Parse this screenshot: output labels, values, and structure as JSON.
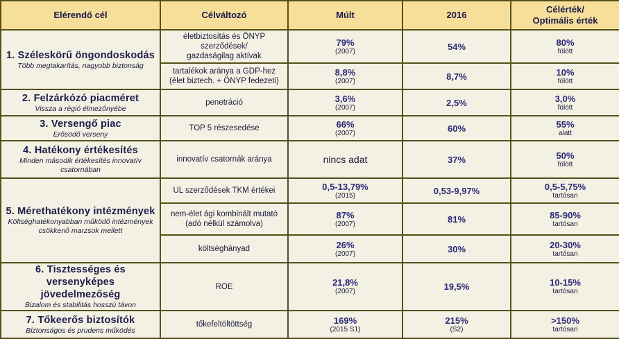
{
  "headers": {
    "goal": "Elérendő cél",
    "variable": "Célváltozó",
    "past": "Múlt",
    "year": "2016",
    "target_line1": "Célérték/",
    "target_line2": "Optimális érték"
  },
  "rows": [
    {
      "title": "1. Széleskörű öngondoskodás",
      "subtitle": "Több megtakarítás, nagyobb biztonság",
      "metrics": [
        {
          "variable_l1": "életbiztosítás és ÖNYP",
          "variable_l2": "szerződések/",
          "variable_l3": "gazdaságilag aktívak",
          "past": "79%",
          "past_note": "(2007)",
          "current": "54%",
          "current_note": "",
          "target": "80%",
          "target_note": "fölött"
        },
        {
          "variable_l1": "tartalékok aránya a GDP-hez",
          "variable_l2": "(élet biztech. + ÖNYP fedezeti)",
          "past": "8,8%",
          "past_note": "(2007)",
          "current": "8,7%",
          "current_note": "",
          "target": "10%",
          "target_note": "fölött"
        }
      ]
    },
    {
      "title": "2. Felzárkózó piacméret",
      "subtitle": "Vissza a régió élmezőnyébe",
      "metrics": [
        {
          "variable_l1": "penetráció",
          "past": "3,6%",
          "past_note": "(2007)",
          "current": "2,5%",
          "current_note": "",
          "target": "3,0%",
          "target_note": "fölött"
        }
      ]
    },
    {
      "title": "3. Versengő piac",
      "subtitle": "Erősödő verseny",
      "metrics": [
        {
          "variable_l1": "TOP 5 részesedése",
          "past": "66%",
          "past_note": "(2007)",
          "current": "60%",
          "current_note": "",
          "target": "55%",
          "target_note": "alatt"
        }
      ]
    },
    {
      "title": "4. Hatékony értékesítés",
      "subtitle_l1": "Minden második értékesítés innovatív",
      "subtitle_l2": "csatornában",
      "metrics": [
        {
          "variable_l1": "innovatív csatornák aránya",
          "past": "nincs adat",
          "past_note": "",
          "current": "37%",
          "current_note": "",
          "target": "50%",
          "target_note": "fölött"
        }
      ]
    },
    {
      "title": "5. Mérethatékony intézmények",
      "subtitle_l1": "Költséghatékonyabban működő intézmények",
      "subtitle_l2": "csökkenő marzsok mellett",
      "metrics": [
        {
          "variable_l1": "UL szerződések TKM értékei",
          "past": "0,5-13,79%",
          "past_note": "(2015)",
          "current": "0,53-9,97%",
          "current_note": "",
          "target": "0,5-5,75%",
          "target_note": "tartósan"
        },
        {
          "variable_l1": "nem-élet ági kombinált mutató",
          "variable_l2": "(adó nélkül számolva)",
          "past": "87%",
          "past_note": "(2007)",
          "current": "81%",
          "current_note": "",
          "target": "85-90%",
          "target_note": "tartósan"
        },
        {
          "variable_l1": "költséghányad",
          "past": "26%",
          "past_note": "(2007)",
          "current": "30%",
          "current_note": "",
          "target": "20-30%",
          "target_note": "tartósan"
        }
      ]
    },
    {
      "title_l1": "6. Tisztességes és versenyképes",
      "title_l2": "jövedelmezőség",
      "subtitle": "Bizalom és stabilitás hosszú távon",
      "metrics": [
        {
          "variable_l1": "ROE",
          "past": "21,8%",
          "past_note": "(2007)",
          "current": "19,5%",
          "current_note": "",
          "target": "10-15%",
          "target_note": "tartósan"
        }
      ]
    },
    {
      "title": "7. Tőkeerős biztosítók",
      "subtitle": "Biztonságos és prudens működés",
      "metrics": [
        {
          "variable_l1": "tőkefeltöltöttség",
          "past": "169%",
          "past_note": "(2015 S1)",
          "current": "215%",
          "current_note": "(S2)",
          "target": ">150%",
          "target_note": "tartósan"
        }
      ]
    }
  ]
}
